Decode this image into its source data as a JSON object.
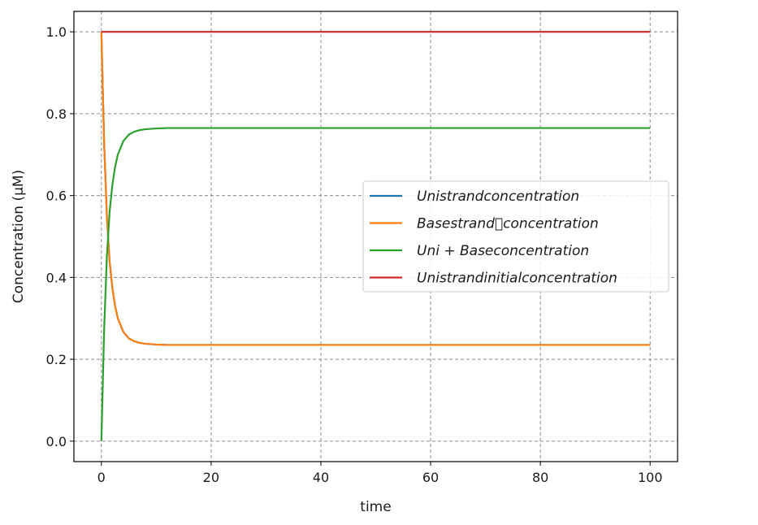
{
  "chart_data": {
    "type": "line",
    "title": "",
    "xlabel": "time",
    "ylabel": "Concentration (μM)",
    "xlim": [
      -5,
      105
    ],
    "ylim": [
      -0.05,
      1.05
    ],
    "xticks": [
      0,
      20,
      40,
      60,
      80,
      100
    ],
    "yticks": [
      0.0,
      0.2,
      0.4,
      0.6,
      0.8,
      1.0
    ],
    "xtick_labels": [
      "0",
      "20",
      "40",
      "60",
      "80",
      "100"
    ],
    "ytick_labels": [
      "0.0",
      "0.2",
      "0.4",
      "0.6",
      "0.8",
      "1.0"
    ],
    "grid": true,
    "grid_style": "dashed",
    "legend_position": "center-right",
    "x": [
      0,
      0.5,
      1,
      1.5,
      2,
      2.5,
      3,
      4,
      5,
      6,
      7,
      8,
      10,
      12,
      15,
      20,
      30,
      40,
      50,
      60,
      70,
      80,
      90,
      100
    ],
    "series": [
      {
        "name": "Unistrandconcentration",
        "color": "#1f77b4",
        "values": [
          1.0,
          0.73,
          0.55,
          0.44,
          0.375,
          0.33,
          0.3,
          0.267,
          0.251,
          0.244,
          0.24,
          0.238,
          0.236,
          0.235,
          0.235,
          0.235,
          0.235,
          0.235,
          0.235,
          0.235,
          0.235,
          0.235,
          0.235,
          0.235
        ]
      },
      {
        "name": "Basestrand\u0000concentration",
        "color": "#ff7f0e",
        "values": [
          1.0,
          0.73,
          0.55,
          0.44,
          0.375,
          0.33,
          0.3,
          0.267,
          0.251,
          0.244,
          0.24,
          0.238,
          0.236,
          0.235,
          0.235,
          0.235,
          0.235,
          0.235,
          0.235,
          0.235,
          0.235,
          0.235,
          0.235,
          0.235
        ]
      },
      {
        "name": "Uni + Baseconcentration",
        "color": "#2ca02c",
        "values": [
          0.0,
          0.27,
          0.45,
          0.56,
          0.625,
          0.67,
          0.7,
          0.733,
          0.749,
          0.756,
          0.76,
          0.762,
          0.764,
          0.765,
          0.765,
          0.765,
          0.765,
          0.765,
          0.765,
          0.765,
          0.765,
          0.765,
          0.765,
          0.765
        ]
      },
      {
        "name": "Unistrandinitialconcentration",
        "color": "#d62728",
        "values": [
          1.0,
          1.0,
          1.0,
          1.0,
          1.0,
          1.0,
          1.0,
          1.0,
          1.0,
          1.0,
          1.0,
          1.0,
          1.0,
          1.0,
          1.0,
          1.0,
          1.0,
          1.0,
          1.0,
          1.0,
          1.0,
          1.0,
          1.0,
          1.0
        ]
      }
    ]
  }
}
